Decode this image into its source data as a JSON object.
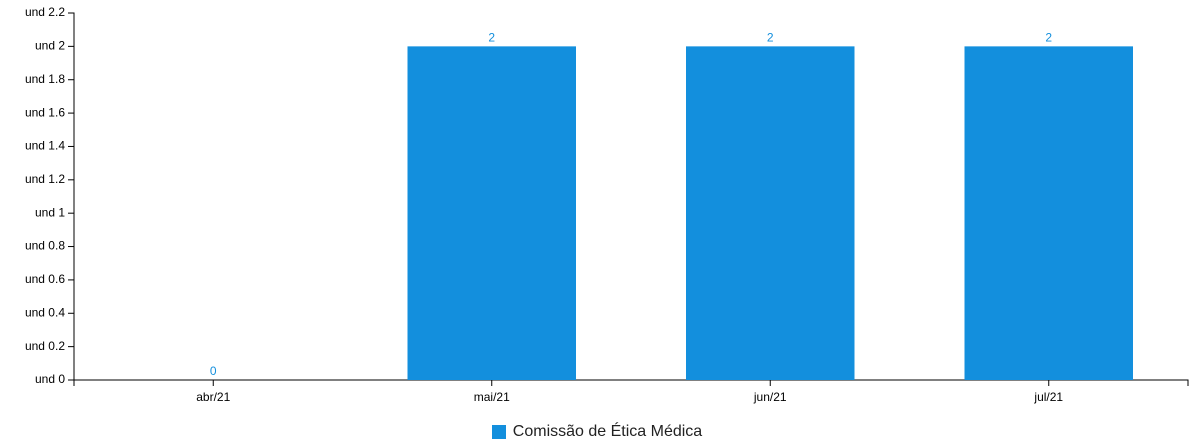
{
  "chart_data": {
    "type": "bar",
    "categories": [
      "abr/21",
      "mai/21",
      "jun/21",
      "jul/21"
    ],
    "series": [
      {
        "name": "Comissão de Ética Médica",
        "values": [
          0,
          2,
          2,
          2
        ],
        "color": "#138fdd"
      }
    ],
    "data_labels": [
      "0",
      "2",
      "2",
      "2"
    ],
    "y_ticks": [
      0,
      0.2,
      0.4,
      0.6,
      0.8,
      1,
      1.2,
      1.4,
      1.6,
      1.8,
      2,
      2.2
    ],
    "y_tick_labels": [
      "und 0",
      "und 0.2",
      "und 0.4",
      "und 0.6",
      "und 0.8",
      "und 1",
      "und 1.2",
      "und 1.4",
      "und 1.6",
      "und 1.8",
      "und 2",
      "und 2.2"
    ],
    "ylim": [
      0,
      2.2
    ],
    "grid": false,
    "legend_position": "bottom-center",
    "title": "",
    "xlabel": "",
    "ylabel": ""
  }
}
